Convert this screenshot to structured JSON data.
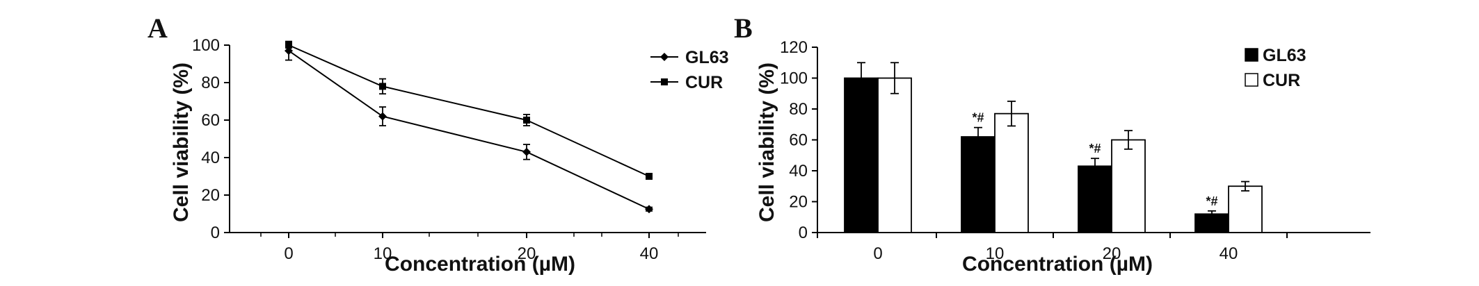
{
  "chart_data": [
    {
      "panel_label": "A",
      "type": "line",
      "x": [
        0,
        10,
        20,
        40
      ],
      "xlabel": "Concentration (µM)",
      "ylabel": "Cell viability (%)",
      "ylim": [
        0,
        100
      ],
      "yticks": [
        0,
        20,
        40,
        60,
        80,
        100
      ],
      "legend_position": "top-right",
      "series": [
        {
          "name": "GL63",
          "values": [
            97,
            62,
            43,
            12.5
          ],
          "errors": [
            5,
            5,
            4,
            1
          ],
          "marker": "diamond"
        },
        {
          "name": "CUR",
          "values": [
            100,
            78,
            60,
            30
          ],
          "errors": [
            1,
            4,
            3,
            1.5
          ],
          "marker": "square"
        }
      ]
    },
    {
      "panel_label": "B",
      "type": "bar",
      "categories": [
        "0",
        "10",
        "20",
        "40"
      ],
      "xlabel": "Concentration (µM)",
      "ylabel": "Cell viability (%)",
      "ylim": [
        0,
        120
      ],
      "yticks": [
        0,
        20,
        40,
        60,
        80,
        100,
        120
      ],
      "legend_position": "top-right",
      "series": [
        {
          "name": "GL63",
          "values": [
            100,
            62,
            43,
            12
          ],
          "errors": [
            10,
            6,
            5,
            2
          ],
          "fill": "#000000"
        },
        {
          "name": "CUR",
          "values": [
            100,
            77,
            60,
            30
          ],
          "errors": [
            10,
            8,
            6,
            3
          ],
          "fill": "#ffffff"
        }
      ],
      "annotations": [
        "",
        "*#",
        "*#",
        "*#"
      ]
    }
  ]
}
